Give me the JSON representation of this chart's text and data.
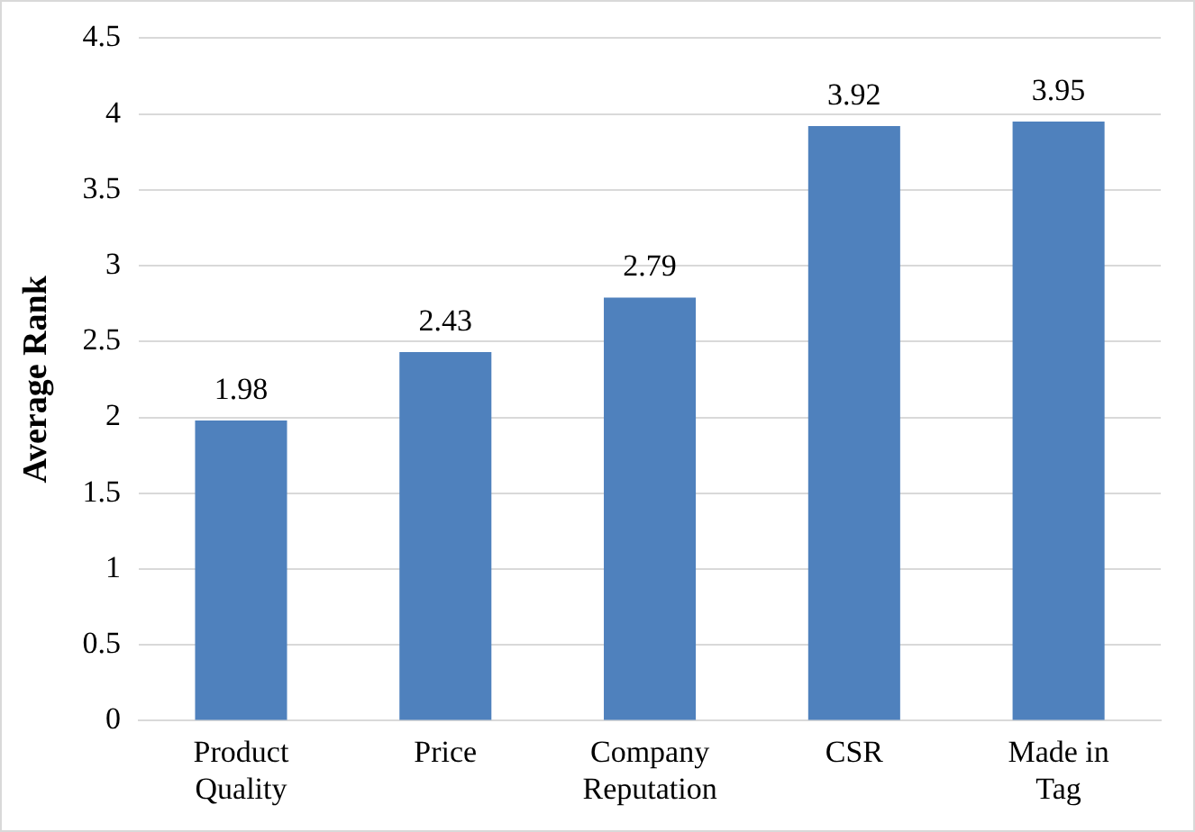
{
  "chart_data": {
    "type": "bar",
    "ylabel": "Average Rank",
    "categories": [
      "Product Quality",
      "Price",
      "Company Reputation",
      "CSR",
      "Made in Tag"
    ],
    "values": [
      1.98,
      2.43,
      2.79,
      3.92,
      3.95
    ],
    "color": "#4f81bd",
    "ylim": [
      0,
      4.5
    ],
    "yticks": [
      0,
      0.5,
      1,
      1.5,
      2,
      2.5,
      3,
      3.5,
      4,
      4.5
    ],
    "grid": "y",
    "data_labels": true,
    "legend": false
  }
}
